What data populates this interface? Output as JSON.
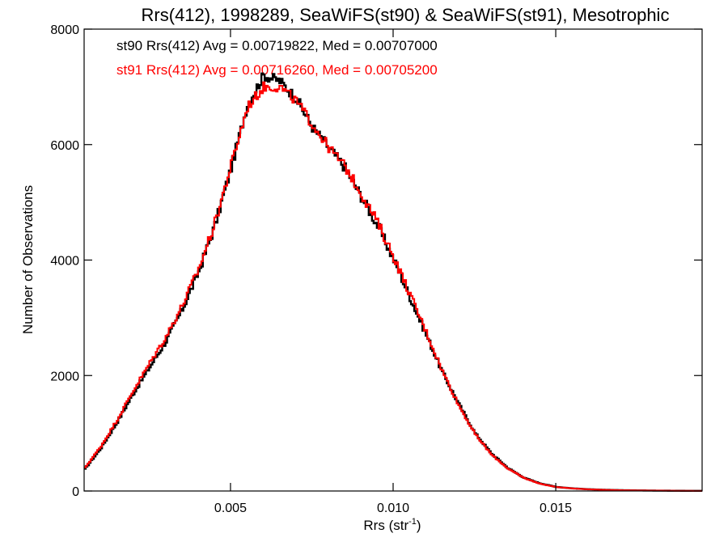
{
  "chart_data": {
    "type": "line",
    "title": "Rrs(412), 1998289, SeaWiFS(st90) & SeaWiFS(st91), Mesotrophic",
    "xlabel": "Rrs (str",
    "xlabel_sup": "-1",
    "xlabel_close": ")",
    "ylabel": "Number of Observations",
    "xlim": [
      0.0005,
      0.0195
    ],
    "ylim": [
      0,
      8000
    ],
    "x_ticks": [
      {
        "value": 0.005,
        "label": "0.005"
      },
      {
        "value": 0.01,
        "label": "0.010"
      },
      {
        "value": 0.015,
        "label": "0.015"
      }
    ],
    "y_ticks": [
      {
        "value": 0,
        "label": "0"
      },
      {
        "value": 2000,
        "label": "2000"
      },
      {
        "value": 4000,
        "label": "4000"
      },
      {
        "value": 6000,
        "label": "6000"
      },
      {
        "value": 8000,
        "label": "8000"
      }
    ],
    "grid": false,
    "legend_position": "top-left",
    "annotations": [
      {
        "text": "st90 Rrs(412) Avg = 0.00719822, Med = 0.00707000",
        "color": "#000000"
      },
      {
        "text": "st91 Rrs(412) Avg = 0.00716260, Med = 0.00705200",
        "color": "#ff0000"
      }
    ],
    "series": [
      {
        "color": "#000000",
        "x": [
          0.0005,
          0.001,
          0.0015,
          0.002,
          0.0025,
          0.003,
          0.0035,
          0.004,
          0.0045,
          0.005,
          0.0055,
          0.006,
          0.0065,
          0.007,
          0.0075,
          0.008,
          0.0085,
          0.009,
          0.0095,
          0.01,
          0.0105,
          0.011,
          0.0115,
          0.012,
          0.0125,
          0.013,
          0.0135,
          0.014,
          0.0145,
          0.015,
          0.0155,
          0.016,
          0.0165,
          0.017,
          0.0175,
          0.018,
          0.0185,
          0.019,
          0.0195
        ],
        "values": [
          380,
          750,
          1200,
          1700,
          2150,
          2600,
          3150,
          3800,
          4600,
          5600,
          6700,
          7200,
          7100,
          6800,
          6300,
          5950,
          5600,
          5100,
          4600,
          4000,
          3350,
          2700,
          2050,
          1500,
          1000,
          650,
          400,
          230,
          130,
          70,
          45,
          30,
          20,
          14,
          10,
          7,
          5,
          3,
          2
        ]
      },
      {
        "color": "#ff0000",
        "x": [
          0.0005,
          0.001,
          0.0015,
          0.002,
          0.0025,
          0.003,
          0.0035,
          0.004,
          0.0045,
          0.005,
          0.0055,
          0.006,
          0.0065,
          0.007,
          0.0075,
          0.008,
          0.0085,
          0.009,
          0.0095,
          0.01,
          0.0105,
          0.011,
          0.0115,
          0.012,
          0.0125,
          0.013,
          0.0135,
          0.014,
          0.0145,
          0.015,
          0.0155,
          0.016,
          0.0165,
          0.017,
          0.0175,
          0.018,
          0.0185,
          0.019,
          0.0195
        ],
        "values": [
          400,
          780,
          1240,
          1750,
          2220,
          2680,
          3220,
          3850,
          4650,
          5650,
          6650,
          7000,
          7000,
          6750,
          6350,
          5950,
          5620,
          5150,
          4650,
          4050,
          3400,
          2750,
          2070,
          1480,
          980,
          630,
          390,
          225,
          125,
          68,
          44,
          29,
          19,
          13,
          9,
          7,
          5,
          3,
          2
        ]
      }
    ]
  }
}
